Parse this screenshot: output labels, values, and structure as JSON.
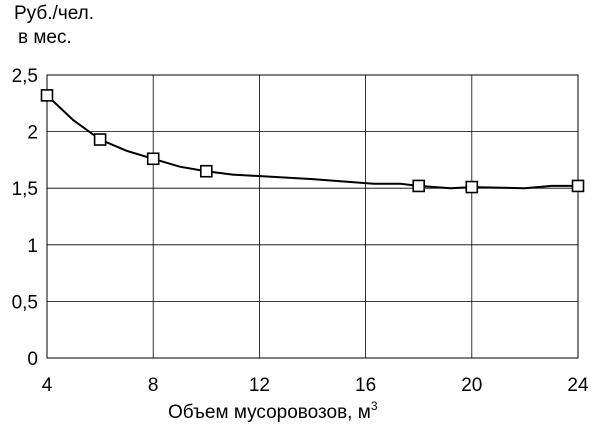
{
  "chart_data": {
    "type": "line",
    "ylabel_line1": "Руб./чел.",
    "ylabel_line2": "в мес.",
    "xlabel": "Объем мусоровозов, м",
    "xlabel_sup": "3",
    "xlim": [
      4,
      24
    ],
    "ylim": [
      0,
      2.5
    ],
    "x_ticks": [
      4,
      8,
      12,
      16,
      20,
      24
    ],
    "y_ticks": [
      "0",
      "0,5",
      "1",
      "1,5",
      "2",
      "2,5"
    ],
    "y_tick_values": [
      0,
      0.5,
      1,
      1.5,
      2,
      2.5
    ],
    "grid": true,
    "series": [
      {
        "markers": [
          {
            "x": 4,
            "y": 2.32
          },
          {
            "x": 6,
            "y": 1.93
          },
          {
            "x": 8,
            "y": 1.76
          },
          {
            "x": 10,
            "y": 1.65
          },
          {
            "x": 18,
            "y": 1.52
          },
          {
            "x": 20,
            "y": 1.51
          },
          {
            "x": 24,
            "y": 1.52
          }
        ],
        "curve": [
          {
            "x": 4,
            "y": 2.32
          },
          {
            "x": 5,
            "y": 2.1
          },
          {
            "x": 6,
            "y": 1.93
          },
          {
            "x": 7,
            "y": 1.83
          },
          {
            "x": 8,
            "y": 1.76
          },
          {
            "x": 9,
            "y": 1.69
          },
          {
            "x": 10,
            "y": 1.65
          },
          {
            "x": 11,
            "y": 1.62
          },
          {
            "x": 14,
            "y": 1.58
          },
          {
            "x": 16.3,
            "y": 1.54
          },
          {
            "x": 17.3,
            "y": 1.54
          },
          {
            "x": 18,
            "y": 1.52
          },
          {
            "x": 19.2,
            "y": 1.5
          },
          {
            "x": 20,
            "y": 1.51
          },
          {
            "x": 22,
            "y": 1.5
          },
          {
            "x": 23,
            "y": 1.52
          },
          {
            "x": 24,
            "y": 1.52
          }
        ]
      }
    ]
  }
}
